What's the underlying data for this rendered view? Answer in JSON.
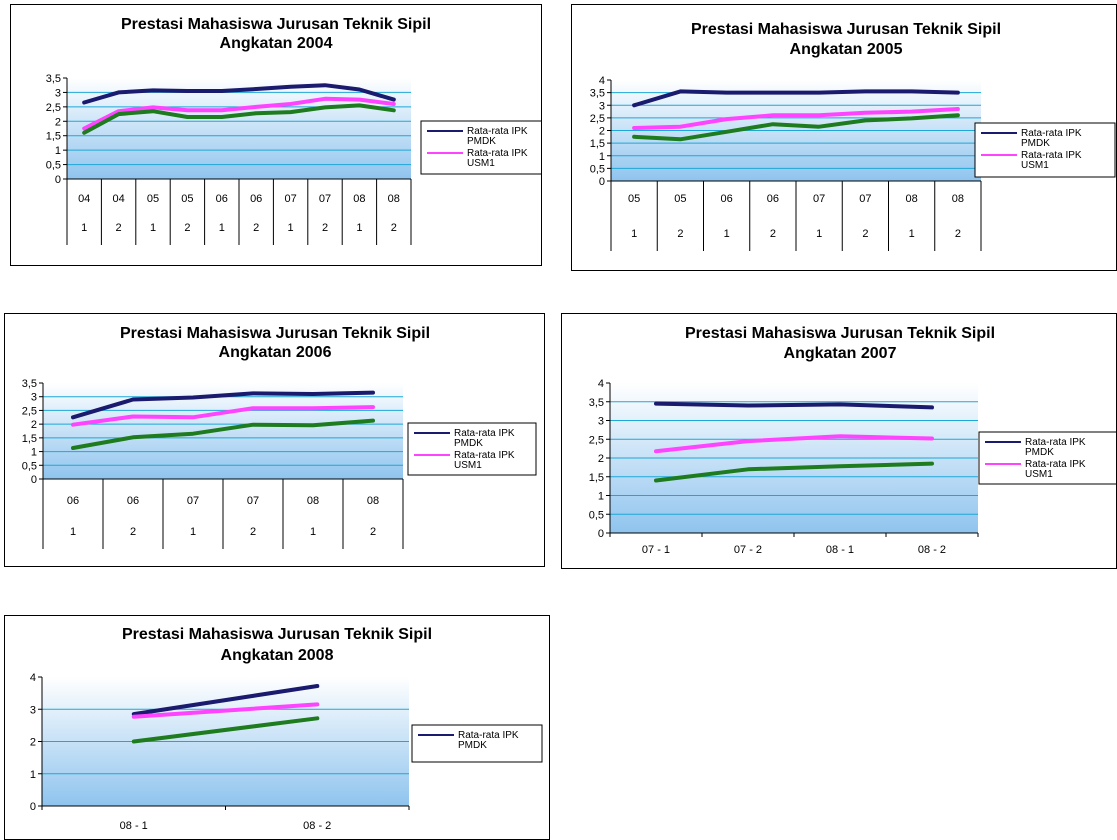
{
  "chart_data": [
    {
      "type": "line",
      "title": "Prestasi Mahasiswa Jurusan Teknik Sipil",
      "subtitle": "Angkatan 2004",
      "ylim": [
        0,
        3.5
      ],
      "yticks": [
        "3,5",
        "3",
        "2,5",
        "2",
        "1,5",
        "1",
        "0,5",
        "0"
      ],
      "x_level1": [
        "04",
        "04",
        "05",
        "05",
        "06",
        "06",
        "07",
        "07",
        "08",
        "08"
      ],
      "x_level2": [
        "1",
        "2",
        "1",
        "2",
        "1",
        "2",
        "1",
        "2",
        "1",
        "2"
      ],
      "legend": [
        "Rata-rata IPK PMDK",
        "Rata-rata IPK USM1"
      ],
      "legend_placement": "right",
      "series": [
        {
          "name": "Rata-rata IPK PMDK",
          "color": "#1a1a6e",
          "values": [
            2.65,
            3.0,
            3.07,
            3.05,
            3.05,
            3.12,
            3.2,
            3.25,
            3.1,
            2.75
          ]
        },
        {
          "name": "Rata-rata IPK USM1",
          "color": "#ff44ff",
          "values": [
            1.75,
            2.35,
            2.48,
            2.38,
            2.38,
            2.5,
            2.6,
            2.78,
            2.75,
            2.6
          ]
        },
        {
          "color": "#1e7b1e",
          "values": [
            1.6,
            2.25,
            2.35,
            2.15,
            2.15,
            2.28,
            2.32,
            2.48,
            2.55,
            2.38
          ]
        }
      ]
    },
    {
      "type": "line",
      "title": "Prestasi Mahasiswa Jurusan Teknik Sipil",
      "subtitle": "Angkatan 2005",
      "ylim": [
        0,
        4
      ],
      "yticks": [
        "4",
        "3,5",
        "3",
        "2,5",
        "2",
        "1,5",
        "1",
        "0,5",
        "0"
      ],
      "x_level1": [
        "05",
        "05",
        "06",
        "06",
        "07",
        "07",
        "08",
        "08"
      ],
      "x_level2": [
        "1",
        "2",
        "1",
        "2",
        "1",
        "2",
        "1",
        "2"
      ],
      "legend": [
        "Rata-rata IPK PMDK",
        "Rata-rata IPK USM1"
      ],
      "legend_placement": "right",
      "series": [
        {
          "name": "Rata-rata IPK PMDK",
          "color": "#1a1a6e",
          "values": [
            3.0,
            3.55,
            3.5,
            3.5,
            3.5,
            3.55,
            3.55,
            3.5
          ]
        },
        {
          "name": "Rata-rata IPK USM1",
          "color": "#ff44ff",
          "values": [
            2.1,
            2.15,
            2.45,
            2.6,
            2.6,
            2.7,
            2.75,
            2.85
          ]
        },
        {
          "color": "#1e7b1e",
          "values": [
            1.75,
            1.65,
            1.95,
            2.25,
            2.15,
            2.4,
            2.48,
            2.6
          ]
        }
      ]
    },
    {
      "type": "line",
      "title": "Prestasi Mahasiswa Jurusan Teknik Sipil",
      "subtitle": "Angkatan 2006",
      "ylim": [
        0,
        3.5
      ],
      "yticks": [
        "3,5",
        "3",
        "2,5",
        "2",
        "1,5",
        "1",
        "0,5",
        "0"
      ],
      "x_level1": [
        "06",
        "06",
        "07",
        "07",
        "08",
        "08"
      ],
      "x_level2": [
        "1",
        "2",
        "1",
        "2",
        "1",
        "2"
      ],
      "legend": [
        "Rata-rata IPK PMDK",
        "Rata-rata IPK USM1"
      ],
      "legend_placement": "right",
      "series": [
        {
          "name": "Rata-rata IPK PMDK",
          "color": "#1a1a6e",
          "values": [
            2.25,
            2.9,
            2.97,
            3.12,
            3.1,
            3.15
          ]
        },
        {
          "name": "Rata-rata IPK USM1",
          "color": "#ff44ff",
          "values": [
            1.98,
            2.28,
            2.25,
            2.58,
            2.58,
            2.62
          ]
        },
        {
          "color": "#1e7b1e",
          "values": [
            1.13,
            1.52,
            1.65,
            1.98,
            1.96,
            2.13
          ]
        }
      ]
    },
    {
      "type": "line",
      "title": "Prestasi Mahasiswa Jurusan Teknik Sipil",
      "subtitle": "Angkatan 2007",
      "ylim": [
        0,
        4
      ],
      "yticks": [
        "4",
        "3,5",
        "3",
        "2,5",
        "2",
        "1,5",
        "1",
        "0,5",
        "0"
      ],
      "categories": [
        "07 - 1",
        "07 - 2",
        "08 - 1",
        "08 - 2"
      ],
      "legend": [
        "Rata-rata IPK PMDK",
        "Rata-rata IPK USM1"
      ],
      "legend_placement": "right",
      "series": [
        {
          "name": "Rata-rata IPK PMDK",
          "color": "#1a1a6e",
          "values": [
            3.45,
            3.4,
            3.43,
            3.35
          ]
        },
        {
          "name": "Rata-rata IPK USM1",
          "color": "#ff44ff",
          "values": [
            2.18,
            2.45,
            2.58,
            2.52
          ]
        },
        {
          "color": "#1e7b1e",
          "values": [
            1.4,
            1.7,
            1.78,
            1.85
          ]
        }
      ]
    },
    {
      "type": "line",
      "title": "Prestasi Mahasiswa Jurusan Teknik Sipil",
      "subtitle": "Angkatan 2008",
      "ylim": [
        0,
        4
      ],
      "yticks": [
        "4",
        "3",
        "2",
        "1",
        "0"
      ],
      "categories": [
        "08 - 1",
        "08 - 2"
      ],
      "legend": [
        "Rata-rata IPK PMDK"
      ],
      "legend_placement": "right",
      "series": [
        {
          "name": "Rata-rata IPK PMDK",
          "color": "#1a1a6e",
          "values": [
            2.85,
            3.72
          ]
        },
        {
          "color": "#ff44ff",
          "values": [
            2.77,
            3.15
          ]
        },
        {
          "color": "#1e7b1e",
          "values": [
            2.0,
            2.72
          ]
        }
      ]
    }
  ]
}
